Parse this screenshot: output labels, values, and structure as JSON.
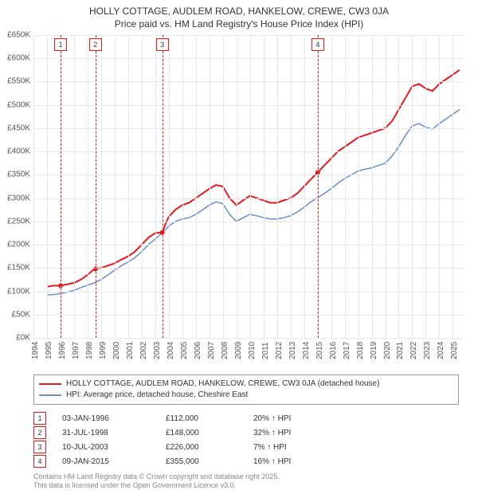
{
  "title_line1": "HOLLY COTTAGE, AUDLEM ROAD, HANKELOW, CREWE, CW3 0JA",
  "title_line2": "Price paid vs. HM Land Registry's House Price Index (HPI)",
  "chart": {
    "type": "line",
    "background_color": "#ffffff",
    "grid_color": "#e8e8e8",
    "axis_label_color": "#555555",
    "axis_label_fontsize": 10,
    "x": {
      "min": 1994,
      "max": 2025.8,
      "ticks": [
        1994,
        1995,
        1996,
        1997,
        1998,
        1999,
        2000,
        2001,
        2002,
        2003,
        2004,
        2005,
        2006,
        2007,
        2008,
        2009,
        2010,
        2011,
        2012,
        2013,
        2014,
        2015,
        2016,
        2017,
        2018,
        2019,
        2020,
        2021,
        2022,
        2023,
        2024,
        2025
      ]
    },
    "y": {
      "min": 0,
      "max": 650,
      "ticks": [
        0,
        50,
        100,
        150,
        200,
        250,
        300,
        350,
        400,
        450,
        500,
        550,
        600,
        650
      ],
      "tick_prefix": "£",
      "tick_suffix": "K"
    },
    "series": [
      {
        "key": "property",
        "label": "HOLLY COTTAGE, AUDLEM ROAD, HANKELOW, CREWE, CW3 0JA (detached house)",
        "color": "#e31a1c",
        "line_width": 2,
        "points": [
          [
            1995.0,
            110
          ],
          [
            1995.5,
            112
          ],
          [
            1996.0,
            112
          ],
          [
            1996.5,
            115
          ],
          [
            1997.0,
            118
          ],
          [
            1997.5,
            125
          ],
          [
            1998.0,
            135
          ],
          [
            1998.5,
            148
          ],
          [
            1999.0,
            150
          ],
          [
            1999.5,
            155
          ],
          [
            2000.0,
            160
          ],
          [
            2000.5,
            168
          ],
          [
            2001.0,
            175
          ],
          [
            2001.5,
            185
          ],
          [
            2002.0,
            200
          ],
          [
            2002.5,
            215
          ],
          [
            2003.0,
            225
          ],
          [
            2003.5,
            226
          ],
          [
            2004.0,
            260
          ],
          [
            2004.5,
            275
          ],
          [
            2005.0,
            285
          ],
          [
            2005.5,
            290
          ],
          [
            2006.0,
            300
          ],
          [
            2006.5,
            310
          ],
          [
            2007.0,
            320
          ],
          [
            2007.5,
            328
          ],
          [
            2008.0,
            325
          ],
          [
            2008.5,
            300
          ],
          [
            2009.0,
            285
          ],
          [
            2009.5,
            295
          ],
          [
            2010.0,
            305
          ],
          [
            2010.5,
            300
          ],
          [
            2011.0,
            295
          ],
          [
            2011.5,
            290
          ],
          [
            2012.0,
            290
          ],
          [
            2012.5,
            295
          ],
          [
            2013.0,
            300
          ],
          [
            2013.5,
            310
          ],
          [
            2014.0,
            325
          ],
          [
            2014.5,
            340
          ],
          [
            2015.0,
            355
          ],
          [
            2015.5,
            370
          ],
          [
            2016.0,
            385
          ],
          [
            2016.5,
            400
          ],
          [
            2017.0,
            410
          ],
          [
            2017.5,
            420
          ],
          [
            2018.0,
            430
          ],
          [
            2018.5,
            435
          ],
          [
            2019.0,
            440
          ],
          [
            2019.5,
            445
          ],
          [
            2020.0,
            450
          ],
          [
            2020.5,
            465
          ],
          [
            2021.0,
            490
          ],
          [
            2021.5,
            515
          ],
          [
            2022.0,
            540
          ],
          [
            2022.5,
            545
          ],
          [
            2023.0,
            535
          ],
          [
            2023.5,
            530
          ],
          [
            2024.0,
            545
          ],
          [
            2024.5,
            555
          ],
          [
            2025.0,
            565
          ],
          [
            2025.5,
            575
          ]
        ]
      },
      {
        "key": "hpi",
        "label": "HPI: Average price, detached house, Cheshire East",
        "color": "#6a8fc8",
        "line_width": 1.5,
        "points": [
          [
            1995.0,
            92
          ],
          [
            1995.5,
            93
          ],
          [
            1996.0,
            95
          ],
          [
            1996.5,
            98
          ],
          [
            1997.0,
            102
          ],
          [
            1997.5,
            108
          ],
          [
            1998.0,
            113
          ],
          [
            1998.5,
            118
          ],
          [
            1999.0,
            125
          ],
          [
            1999.5,
            135
          ],
          [
            2000.0,
            145
          ],
          [
            2000.5,
            155
          ],
          [
            2001.0,
            163
          ],
          [
            2001.5,
            172
          ],
          [
            2002.0,
            185
          ],
          [
            2002.5,
            200
          ],
          [
            2003.0,
            212
          ],
          [
            2003.5,
            225
          ],
          [
            2004.0,
            240
          ],
          [
            2004.5,
            250
          ],
          [
            2005.0,
            255
          ],
          [
            2005.5,
            258
          ],
          [
            2006.0,
            265
          ],
          [
            2006.5,
            275
          ],
          [
            2007.0,
            285
          ],
          [
            2007.5,
            292
          ],
          [
            2008.0,
            288
          ],
          [
            2008.5,
            265
          ],
          [
            2009.0,
            250
          ],
          [
            2009.5,
            258
          ],
          [
            2010.0,
            265
          ],
          [
            2010.5,
            262
          ],
          [
            2011.0,
            258
          ],
          [
            2011.5,
            255
          ],
          [
            2012.0,
            255
          ],
          [
            2012.5,
            258
          ],
          [
            2013.0,
            262
          ],
          [
            2013.5,
            270
          ],
          [
            2014.0,
            280
          ],
          [
            2014.5,
            292
          ],
          [
            2015.0,
            300
          ],
          [
            2015.5,
            310
          ],
          [
            2016.0,
            320
          ],
          [
            2016.5,
            332
          ],
          [
            2017.0,
            342
          ],
          [
            2017.5,
            350
          ],
          [
            2018.0,
            358
          ],
          [
            2018.5,
            362
          ],
          [
            2019.0,
            365
          ],
          [
            2019.5,
            370
          ],
          [
            2020.0,
            375
          ],
          [
            2020.5,
            390
          ],
          [
            2021.0,
            410
          ],
          [
            2021.5,
            435
          ],
          [
            2022.0,
            455
          ],
          [
            2022.5,
            460
          ],
          [
            2023.0,
            452
          ],
          [
            2023.5,
            448
          ],
          [
            2024.0,
            460
          ],
          [
            2024.5,
            470
          ],
          [
            2025.0,
            480
          ],
          [
            2025.5,
            490
          ]
        ]
      }
    ],
    "sale_markers": [
      {
        "n": "1",
        "year": 1996.01,
        "date": "03-JAN-1996",
        "price": "£112,000",
        "delta": "20% ↑ HPI",
        "color": "#e31a1c"
      },
      {
        "n": "2",
        "year": 1998.58,
        "date": "31-JUL-1998",
        "price": "£148,000",
        "delta": "32% ↑ HPI",
        "color": "#e31a1c"
      },
      {
        "n": "3",
        "year": 2003.52,
        "date": "10-JUL-2003",
        "price": "£226,000",
        "delta": "7% ↑ HPI",
        "color": "#e31a1c"
      },
      {
        "n": "4",
        "year": 2015.02,
        "date": "09-JAN-2015",
        "price": "£355,000",
        "delta": "16% ↑ HPI",
        "color": "#e31a1c"
      }
    ],
    "sale_marker_dot_radius": 3
  },
  "footer_line1": "Contains HM Land Registry data © Crown copyright and database right 2025.",
  "footer_line2": "This data is licensed under the Open Government Licence v3.0."
}
